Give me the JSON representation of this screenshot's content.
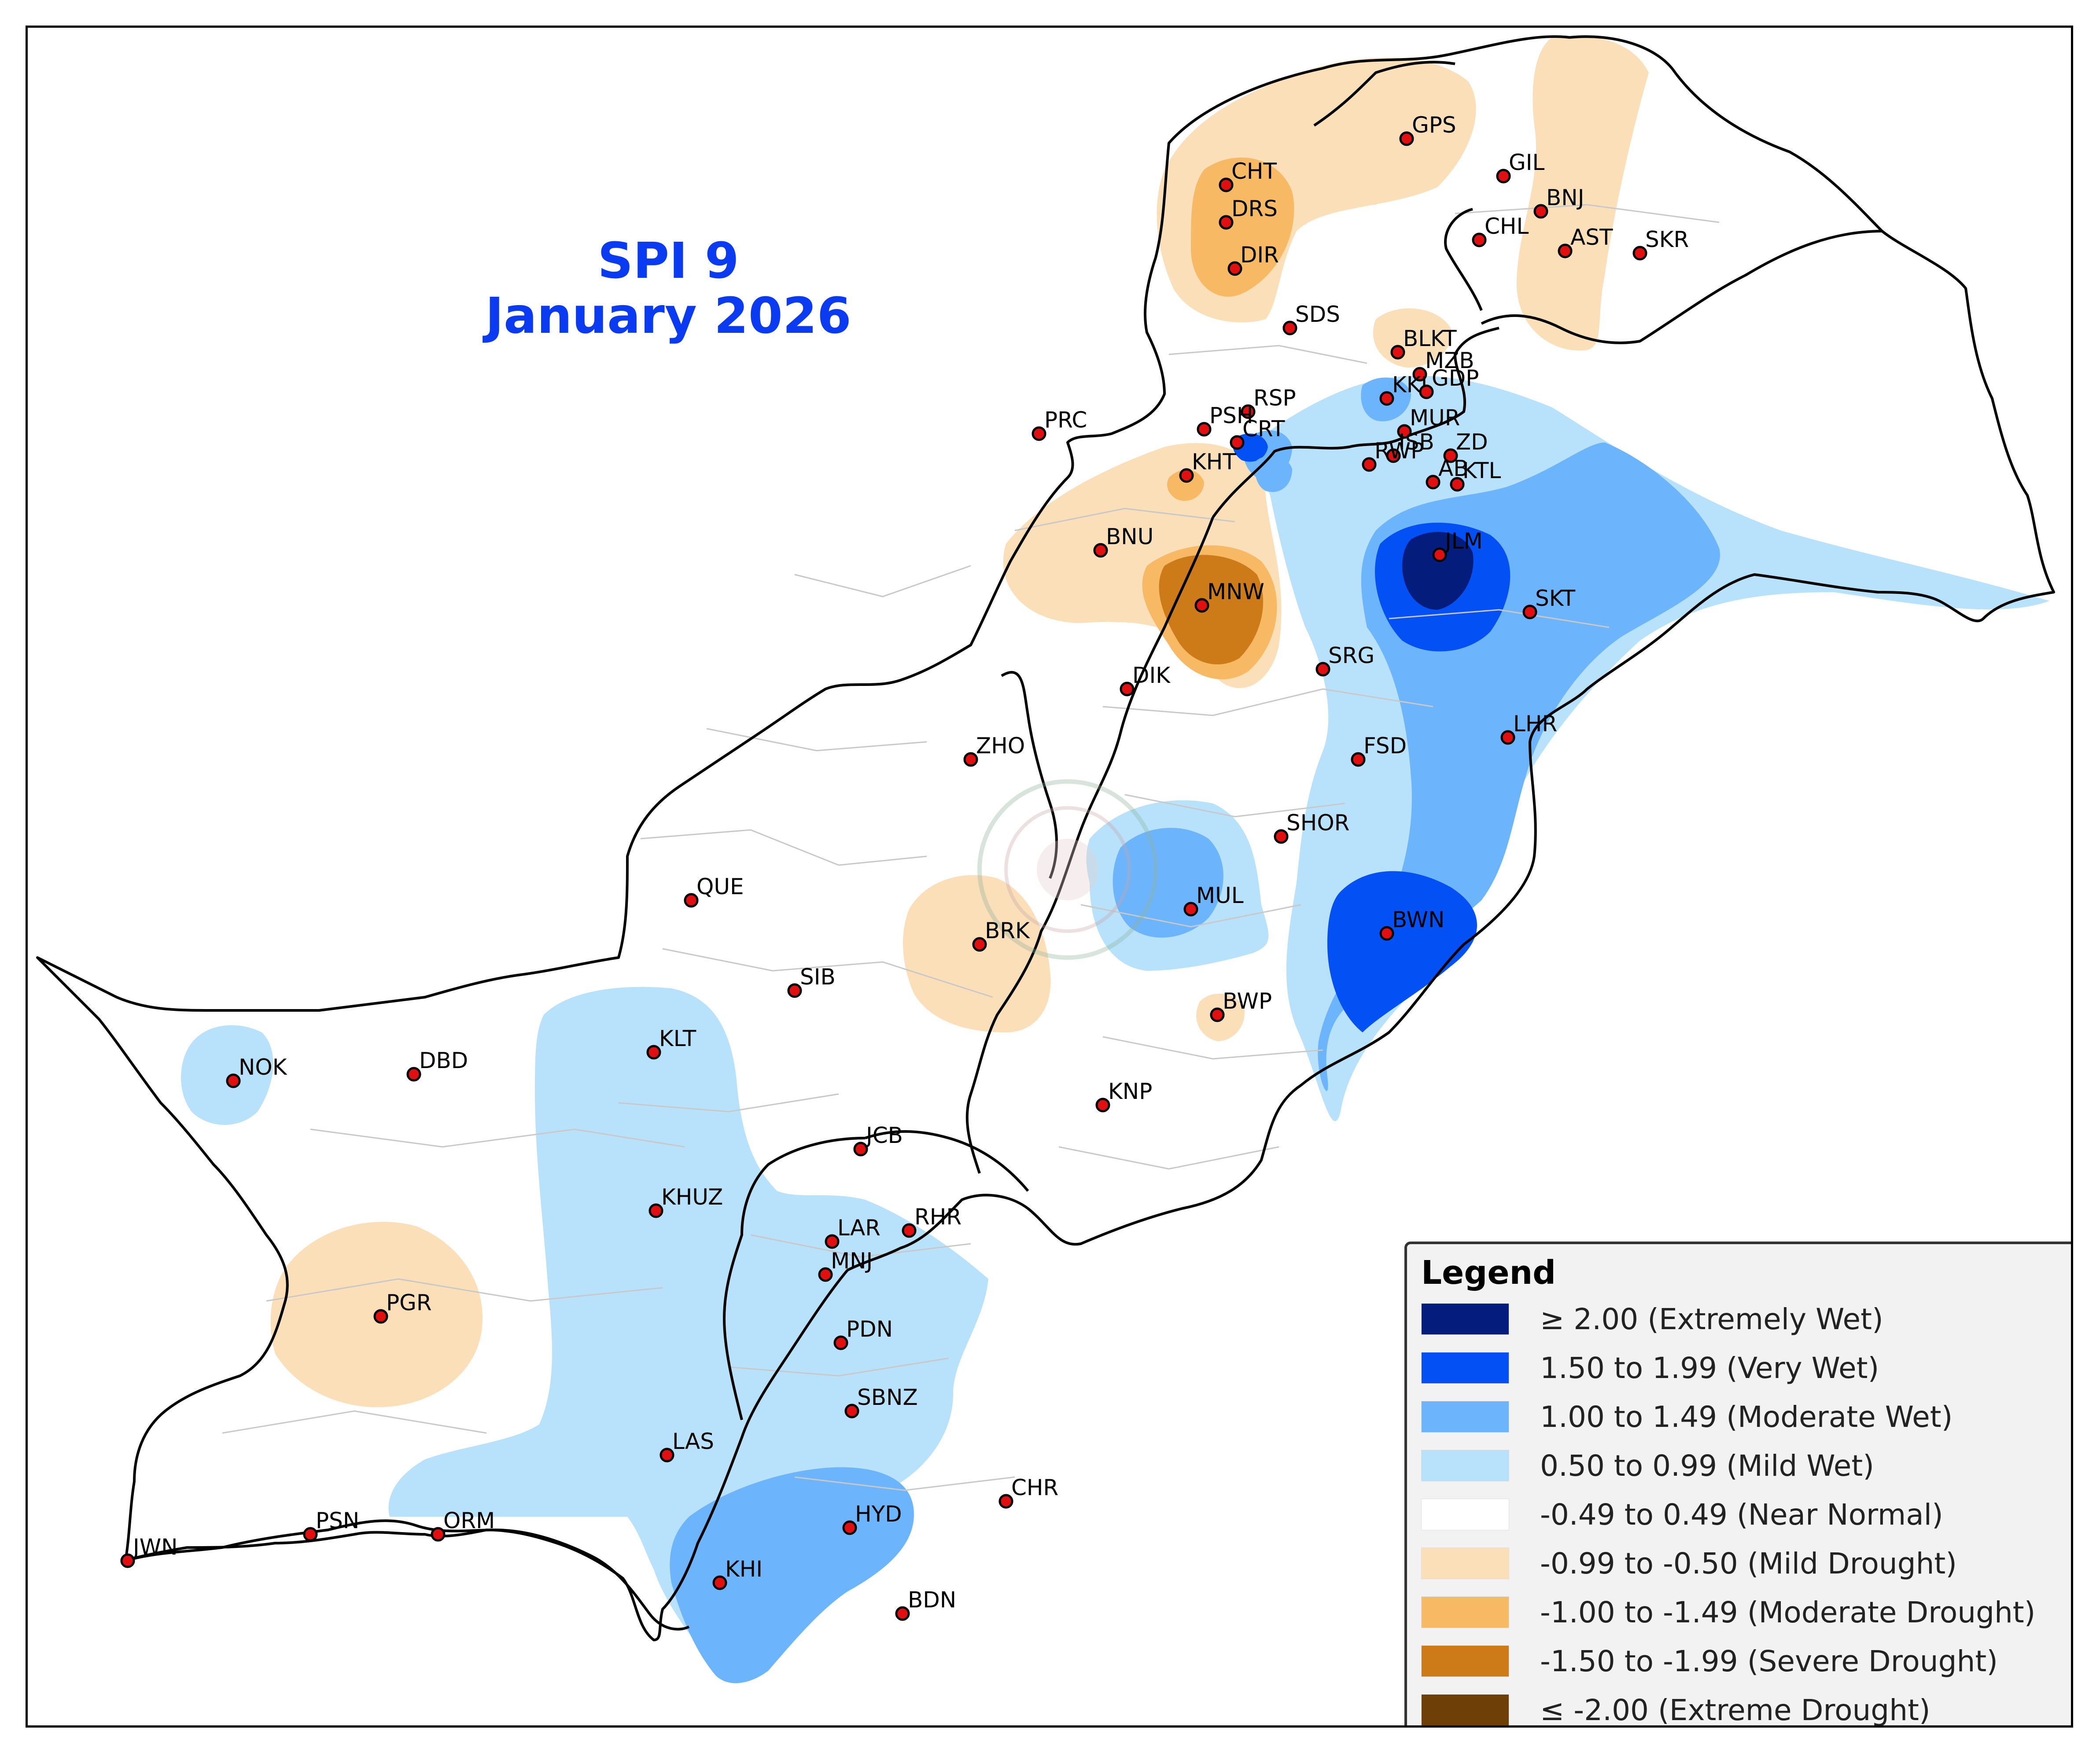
{
  "title": {
    "line1": "SPI 9",
    "line2": "January 2026"
  },
  "legend": {
    "title": "Legend",
    "items": [
      {
        "label": "≥ 2.00 (Extremely Wet)",
        "color": "#041c7c"
      },
      {
        "label": "1.50 to 1.99 (Very Wet)",
        "color": "#0350f5"
      },
      {
        "label": "1.00 to 1.49 (Moderate Wet)",
        "color": "#6cb4fb"
      },
      {
        "label": "0.50 to 0.99 (Mild Wet)",
        "color": "#b8e1fb"
      },
      {
        "label": "-0.49 to 0.49 (Near Normal)",
        "color": "#ffffff"
      },
      {
        "label": "-0.99 to -0.50 (Mild Drought)",
        "color": "#fbdfb9"
      },
      {
        "label": "-1.00 to -1.49 (Moderate Drought)",
        "color": "#f7b963"
      },
      {
        "label": "-1.50 to -1.99 (Severe Drought)",
        "color": "#cd7a18"
      },
      {
        "label": "≤ -2.00 (Extreme Drought)",
        "color": "#6e3f07"
      }
    ]
  },
  "stations": [
    "GPS",
    "GIL",
    "CHT",
    "BNJ",
    "DRS",
    "CHL",
    "AST",
    "SKR",
    "DIR",
    "SDS",
    "BLKT",
    "MZB",
    "KKI",
    "GDP",
    "RSP",
    "PRC",
    "PSH",
    "MUR",
    "CRT",
    "ISB",
    "ZD",
    "KHT",
    "RWP",
    "AB",
    "KTL",
    "BNU",
    "JLM",
    "MNW",
    "SKT",
    "SRG",
    "DIK",
    "LHR",
    "ZHO",
    "FSD",
    "SHOR",
    "QUE",
    "MUL",
    "BRK",
    "BWN",
    "SIB",
    "BWP",
    "KLT",
    "NOK",
    "DBD",
    "KNP",
    "JCB",
    "KHUZ",
    "RHR",
    "LAR",
    "MNJ",
    "PGR",
    "PDN",
    "SBNZ",
    "LAS",
    "CHR",
    "HYD",
    "PSN",
    "ORM",
    "JWN",
    "KHI",
    "BDN"
  ]
}
